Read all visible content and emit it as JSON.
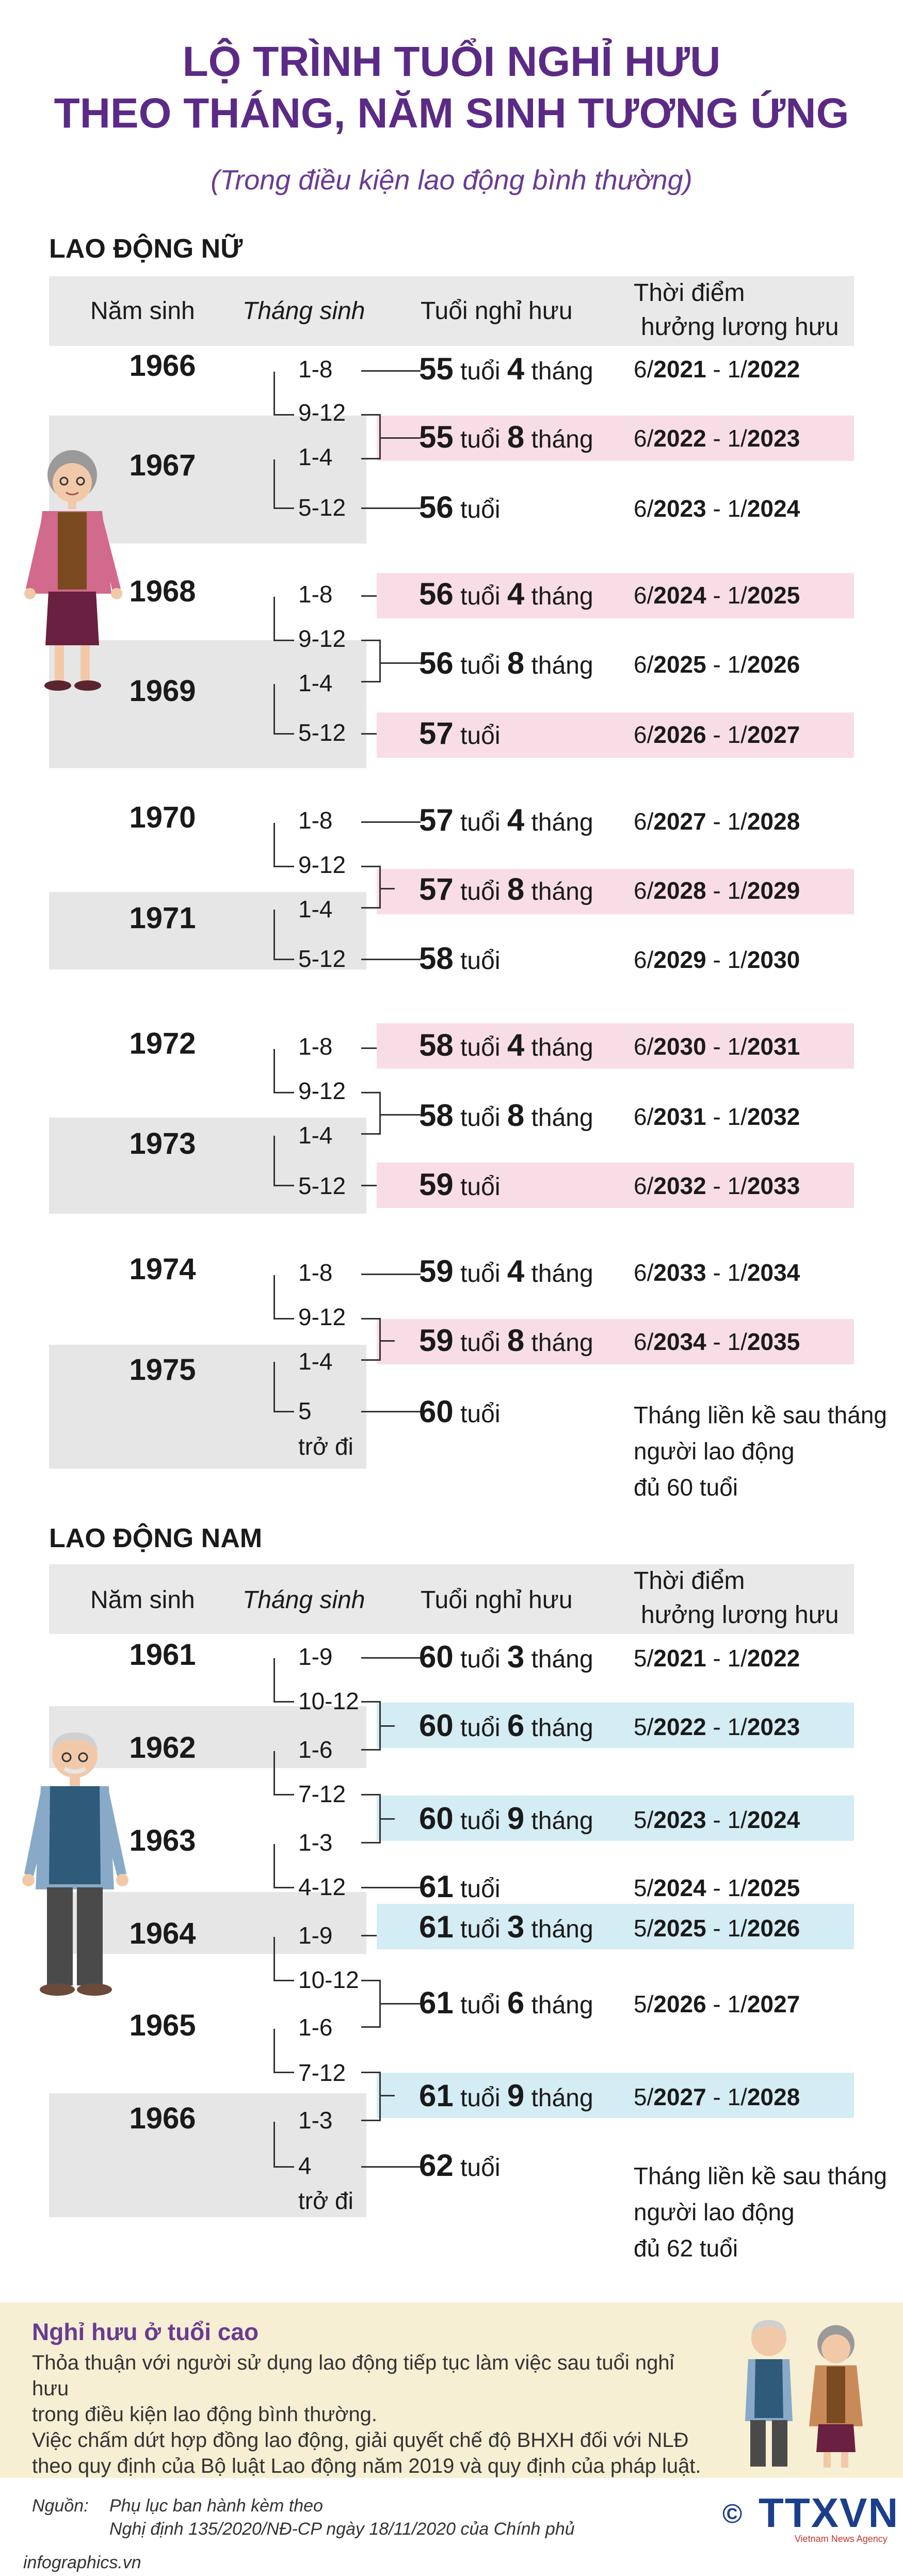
{
  "title_line1": "LỘ TRÌNH TUỔI NGHỈ HƯU",
  "title_line2": "THEO THÁNG, NĂM SINH TƯƠNG ỨNG",
  "subtitle": "(Trong điều kiện lao động bình thường)",
  "headers": {
    "birth_year": "Năm sinh",
    "birth_month": "Tháng sinh",
    "retire_age": "Tuổi nghỉ hưu",
    "pension_line1": "Thời điểm",
    "pension_line2": "hưởng lương hưu"
  },
  "female": {
    "title": "LAO ĐỘNG NỮ",
    "years": [
      "1966",
      "1967",
      "1968",
      "1969",
      "1970",
      "1971",
      "1972",
      "1973",
      "1974",
      "1975"
    ],
    "months": [
      "1-8",
      "9-12",
      "1-4",
      "5-12",
      "1-8",
      "9-12",
      "1-4",
      "5-12",
      "1-8",
      "9-12",
      "1-4",
      "5-12",
      "1-8",
      "9-12",
      "1-4",
      "5-12",
      "1-8",
      "9-12",
      "1-4",
      "5",
      "trở đi"
    ],
    "rows": [
      {
        "num": "55",
        "unit": "tuổi",
        "mnum": "4",
        "munit": "tháng",
        "d1": "6/",
        "d2": "2021",
        "d3": " - 1/",
        "d4": "2022"
      },
      {
        "num": "55",
        "unit": "tuổi",
        "mnum": "8",
        "munit": "tháng",
        "d1": "6/",
        "d2": "2022",
        "d3": " - 1/",
        "d4": "2023"
      },
      {
        "num": "56",
        "unit": "tuổi",
        "mnum": "",
        "munit": "",
        "d1": "6/",
        "d2": "2023",
        "d3": " - 1/",
        "d4": "2024"
      },
      {
        "num": "56",
        "unit": "tuổi",
        "mnum": "4",
        "munit": "tháng",
        "d1": "6/",
        "d2": "2024",
        "d3": " - 1/",
        "d4": "2025"
      },
      {
        "num": "56",
        "unit": "tuổi",
        "mnum": "8",
        "munit": "tháng",
        "d1": "6/",
        "d2": "2025",
        "d3": " - 1/",
        "d4": "2026"
      },
      {
        "num": "57",
        "unit": "tuổi",
        "mnum": "",
        "munit": "",
        "d1": "6/",
        "d2": "2026",
        "d3": " - 1/",
        "d4": "2027"
      },
      {
        "num": "57",
        "unit": "tuổi",
        "mnum": "4",
        "munit": "tháng",
        "d1": "6/",
        "d2": "2027",
        "d3": " - 1/",
        "d4": "2028"
      },
      {
        "num": "57",
        "unit": "tuổi",
        "mnum": "8",
        "munit": "tháng",
        "d1": "6/",
        "d2": "2028",
        "d3": " - 1/",
        "d4": "2029"
      },
      {
        "num": "58",
        "unit": "tuổi",
        "mnum": "",
        "munit": "",
        "d1": "6/",
        "d2": "2029",
        "d3": " - 1/",
        "d4": "2030"
      },
      {
        "num": "58",
        "unit": "tuổi",
        "mnum": "4",
        "munit": "tháng",
        "d1": "6/",
        "d2": "2030",
        "d3": " - 1/",
        "d4": "2031"
      },
      {
        "num": "58",
        "unit": "tuổi",
        "mnum": "8",
        "munit": "tháng",
        "d1": "6/",
        "d2": "2031",
        "d3": " - 1/",
        "d4": "2032"
      },
      {
        "num": "59",
        "unit": "tuổi",
        "mnum": "",
        "munit": "",
        "d1": "6/",
        "d2": "2032",
        "d3": " - 1/",
        "d4": "2033"
      },
      {
        "num": "59",
        "unit": "tuổi",
        "mnum": "4",
        "munit": "tháng",
        "d1": "6/",
        "d2": "2033",
        "d3": " - 1/",
        "d4": "2034"
      },
      {
        "num": "59",
        "unit": "tuổi",
        "mnum": "8",
        "munit": "tháng",
        "d1": "6/",
        "d2": "2034",
        "d3": " - 1/",
        "d4": "2035"
      },
      {
        "num": "60",
        "unit": "tuổi",
        "mnum": "",
        "munit": "",
        "d1": "",
        "d2": "",
        "d3": "",
        "d4": ""
      }
    ],
    "last_note": [
      "Tháng liền kề sau tháng",
      "người lao động",
      "đủ 60 tuổi"
    ]
  },
  "male": {
    "title": "LAO ĐỘNG NAM",
    "years": [
      "1961",
      "1962",
      "1963",
      "1964",
      "1965",
      "1966"
    ],
    "months": [
      "1-9",
      "10-12",
      "1-6",
      "7-12",
      "1-3",
      "4-12",
      "1-9",
      "10-12",
      "1-6",
      "7-12",
      "1-3",
      "4",
      "trở đi"
    ],
    "rows": [
      {
        "num": "60",
        "unit": "tuổi",
        "mnum": "3",
        "munit": "tháng",
        "d1": "5/",
        "d2": "2021",
        "d3": " - 1/",
        "d4": "2022"
      },
      {
        "num": "60",
        "unit": "tuổi",
        "mnum": "6",
        "munit": "tháng",
        "d1": "5/",
        "d2": "2022",
        "d3": " - 1/",
        "d4": "2023"
      },
      {
        "num": "60",
        "unit": "tuổi",
        "mnum": "9",
        "munit": "tháng",
        "d1": "5/",
        "d2": "2023",
        "d3": " - 1/",
        "d4": "2024"
      },
      {
        "num": "61",
        "unit": "tuổi",
        "mnum": "",
        "munit": "",
        "d1": "5/",
        "d2": "2024",
        "d3": " - 1/",
        "d4": "2025"
      },
      {
        "num": "61",
        "unit": "tuổi",
        "mnum": "3",
        "munit": "tháng",
        "d1": "5/",
        "d2": "2025",
        "d3": " - 1/",
        "d4": "2026"
      },
      {
        "num": "61",
        "unit": "tuổi",
        "mnum": "6",
        "munit": "tháng",
        "d1": "5/",
        "d2": "2026",
        "d3": " - 1/",
        "d4": "2027"
      },
      {
        "num": "61",
        "unit": "tuổi",
        "mnum": "9",
        "munit": "tháng",
        "d1": "5/",
        "d2": "2027",
        "d3": " - 1/",
        "d4": "2028"
      },
      {
        "num": "62",
        "unit": "tuổi",
        "mnum": "",
        "munit": "",
        "d1": "",
        "d2": "",
        "d3": "",
        "d4": ""
      }
    ],
    "last_note": [
      "Tháng liền kề sau tháng",
      "người lao động",
      "đủ 62 tuổi"
    ]
  },
  "footer": {
    "title": "Nghỉ hưu ở tuổi cao",
    "lines": [
      "Thỏa thuận với người sử dụng lao động tiếp tục làm việc sau tuổi nghỉ hưu",
      "trong điều kiện lao động bình thường.",
      "Việc chấm dứt hợp đồng lao động, giải quyết chế độ BHXH đối với NLĐ",
      "theo quy định của Bộ luật Lao động năm 2019 và quy định của pháp luật."
    ]
  },
  "source": {
    "label": "Nguồn:",
    "line1": "Phụ lục ban hành kèm theo",
    "line2": "Nghị định 135/2020/NĐ-CP ngày 18/11/2020 của Chính phủ"
  },
  "credit": "infographics.vn",
  "logo": {
    "text": "TTXVN",
    "symbol": "©",
    "tagline": "Vietnam News Agency"
  },
  "colors": {
    "title": "#5b2a86",
    "pink": "#f9dde6",
    "blue": "#d4ecf3",
    "gray": "#e6e6e6",
    "footer": "#f6efd3"
  }
}
